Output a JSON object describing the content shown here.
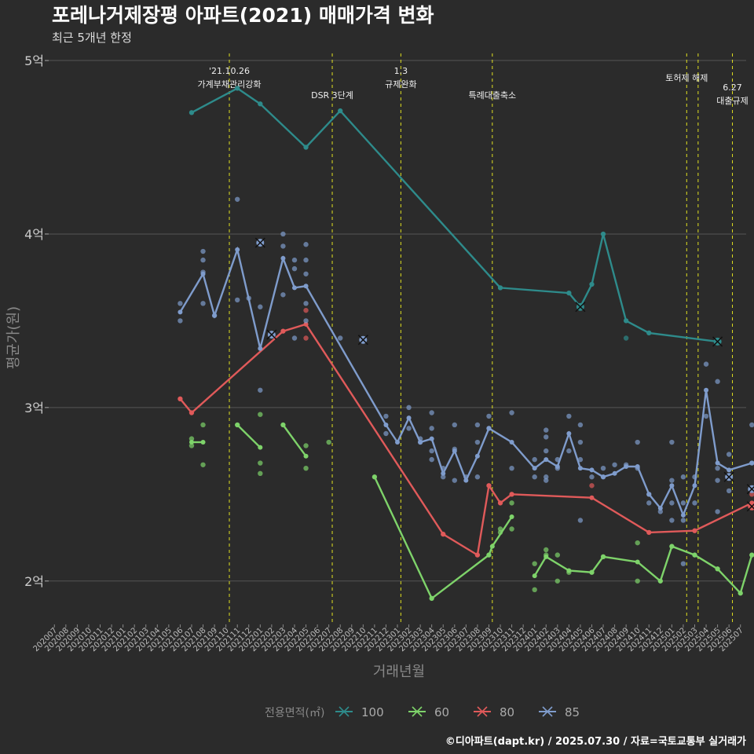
{
  "title": "포레나거제장평 아파트(2021) 매매가격 변화",
  "subtitle": "최근 5개년 한정",
  "footer": "©디아파트(dapt.kr) / 2025.07.30 / 자료=국토교통부 실거래가",
  "colors": {
    "100": "#2e8b8b",
    "60": "#7ed36a",
    "80": "#e05a5a",
    "85": "#7f9ccc",
    "event": "#e0e020",
    "grid": "#555555",
    "bg": "#2b2b2b"
  },
  "chart_data": {
    "type": "line",
    "xlabel": "거래년월",
    "ylabel": "평균가(원)",
    "ylim": [
      1.75,
      5.05
    ],
    "y_ticks": [
      {
        "v": 2,
        "label": "2억"
      },
      {
        "v": 3,
        "label": "3억"
      },
      {
        "v": 4,
        "label": "4억"
      },
      {
        "v": 5,
        "label": "5억"
      }
    ],
    "x_months": [
      "202007",
      "202008",
      "202009",
      "202010",
      "202011",
      "202012",
      "202101",
      "202102",
      "202103",
      "202104",
      "202105",
      "202106",
      "202107",
      "202108",
      "202109",
      "202110",
      "202111",
      "202112",
      "202201",
      "202202",
      "202203",
      "202204",
      "202205",
      "202206",
      "202207",
      "202208",
      "202209",
      "202210",
      "202211",
      "202212",
      "202301",
      "202302",
      "202303",
      "202304",
      "202305",
      "202306",
      "202307",
      "202308",
      "202309",
      "202310",
      "202311",
      "202312",
      "202401",
      "202402",
      "202403",
      "202404",
      "202405",
      "202406",
      "202407",
      "202408",
      "202409",
      "202410",
      "202411",
      "202412",
      "202501",
      "202502",
      "202503",
      "202504",
      "202505",
      "202506",
      "202507"
    ],
    "legend_title": "전용면적(㎡)",
    "events": [
      {
        "x": 15.3,
        "label": "'21.10.26\n가계부채관리강화",
        "pos": "top"
      },
      {
        "x": 24.3,
        "label": "DSR 3단계",
        "pos": "mid"
      },
      {
        "x": 30.3,
        "label": "1.3\n규제완화",
        "pos": "top"
      },
      {
        "x": 38.3,
        "label": "특례대출축소",
        "pos": "mid"
      },
      {
        "x": 55.3,
        "label": "토허제 해제",
        "pos": "top2"
      },
      {
        "x": 56.3,
        "label": "",
        "pos": "none"
      },
      {
        "x": 59.3,
        "label": "6.27\n대출규제",
        "pos": "low"
      }
    ],
    "series": [
      {
        "name": "100",
        "color": "#2e8b8b",
        "line": [
          [
            [
              12,
              4.7
            ],
            [
              16,
              4.84
            ],
            [
              18,
              4.75
            ],
            [
              22,
              4.5
            ],
            [
              25,
              4.71
            ],
            [
              39,
              3.69
            ],
            [
              45,
              3.66
            ],
            [
              46,
              3.58
            ],
            [
              47,
              3.71
            ],
            [
              48,
              4.0
            ],
            [
              50,
              3.5
            ],
            [
              52,
              3.43
            ],
            [
              58,
              3.38
            ]
          ]
        ],
        "points": [
          [
            12,
            4.7
          ],
          [
            16,
            4.84
          ],
          [
            18,
            4.75
          ],
          [
            22,
            4.5
          ],
          [
            25,
            4.71
          ],
          [
            39,
            3.69
          ],
          [
            45,
            3.66
          ],
          [
            47,
            3.71
          ],
          [
            48,
            4.0
          ],
          [
            50,
            3.5
          ],
          [
            50,
            3.4
          ],
          [
            52,
            3.43
          ]
        ],
        "cross": [
          [
            46,
            3.58
          ],
          [
            58,
            3.38
          ]
        ]
      },
      {
        "name": "60",
        "color": "#7ed36a",
        "line": [
          [
            [
              12,
              2.8
            ],
            [
              13,
              2.8
            ]
          ],
          [
            [
              16,
              2.9
            ],
            [
              18,
              2.77
            ]
          ],
          [
            [
              20,
              2.9
            ],
            [
              22,
              2.72
            ]
          ],
          [
            [
              28,
              2.6
            ],
            [
              33,
              1.9
            ],
            [
              38,
              2.15
            ],
            [
              38.3,
              2.2
            ],
            [
              40,
              2.37
            ]
          ],
          [
            [
              42,
              2.03
            ],
            [
              43,
              2.14
            ],
            [
              45,
              2.06
            ],
            [
              47,
              2.05
            ],
            [
              48,
              2.14
            ],
            [
              51,
              2.11
            ],
            [
              53,
              2.0
            ],
            [
              54,
              2.2
            ],
            [
              56,
              2.15
            ],
            [
              58,
              2.07
            ],
            [
              60,
              1.93
            ],
            [
              61,
              2.15
            ]
          ]
        ],
        "points": [
          [
            12,
            2.82
          ],
          [
            12,
            2.78
          ],
          [
            13,
            2.9
          ],
          [
            13,
            2.67
          ],
          [
            16,
            2.9
          ],
          [
            18,
            2.96
          ],
          [
            18,
            2.68
          ],
          [
            18,
            2.62
          ],
          [
            20,
            2.9
          ],
          [
            22,
            2.78
          ],
          [
            22,
            2.65
          ],
          [
            24,
            2.8
          ],
          [
            28,
            2.6
          ],
          [
            33,
            1.9
          ],
          [
            38,
            2.15
          ],
          [
            39,
            2.3
          ],
          [
            39,
            2.28
          ],
          [
            40,
            2.45
          ],
          [
            40,
            2.3
          ],
          [
            42,
            2.1
          ],
          [
            42,
            1.95
          ],
          [
            43,
            2.18
          ],
          [
            43,
            2.15
          ],
          [
            44,
            2.15
          ],
          [
            44,
            2.0
          ],
          [
            45,
            2.05
          ],
          [
            47,
            2.05
          ],
          [
            48,
            2.14
          ],
          [
            51,
            2.22
          ],
          [
            51,
            2.0
          ],
          [
            53,
            2.0
          ],
          [
            54,
            2.2
          ],
          [
            56,
            2.15
          ],
          [
            58,
            2.07
          ],
          [
            60,
            1.93
          ],
          [
            61,
            2.15
          ]
        ],
        "cross": []
      },
      {
        "name": "80",
        "color": "#e05a5a",
        "line": [
          [
            [
              11,
              3.05
            ],
            [
              12,
              2.97
            ],
            [
              20,
              3.44
            ],
            [
              22,
              3.48
            ],
            [
              34,
              2.27
            ],
            [
              37,
              2.15
            ],
            [
              38,
              2.55
            ],
            [
              39,
              2.45
            ],
            [
              40,
              2.5
            ],
            [
              47,
              2.48
            ],
            [
              52,
              2.28
            ],
            [
              56,
              2.29
            ],
            [
              61,
              2.45
            ]
          ]
        ],
        "points": [
          [
            11,
            3.05
          ],
          [
            12,
            2.97
          ],
          [
            20,
            3.44
          ],
          [
            22,
            3.56
          ],
          [
            22,
            3.4
          ],
          [
            34,
            2.27
          ],
          [
            37,
            2.15
          ],
          [
            38,
            2.55
          ],
          [
            39,
            2.45
          ],
          [
            40,
            2.5
          ],
          [
            47,
            2.55
          ],
          [
            52,
            2.28
          ],
          [
            56,
            2.29
          ],
          [
            61,
            2.5
          ]
        ],
        "cross": [
          [
            61,
            2.43
          ]
        ]
      },
      {
        "name": "85",
        "color": "#7f9ccc",
        "line": [
          [
            [
              11,
              3.55
            ],
            [
              13,
              3.77
            ],
            [
              14,
              3.53
            ],
            [
              16,
              3.91
            ],
            [
              18,
              3.34
            ],
            [
              20,
              3.86
            ],
            [
              21,
              3.69
            ],
            [
              22,
              3.7
            ],
            [
              29,
              2.9
            ],
            [
              30,
              2.8
            ],
            [
              31,
              2.94
            ],
            [
              32,
              2.8
            ],
            [
              33,
              2.82
            ],
            [
              34,
              2.62
            ],
            [
              35,
              2.75
            ],
            [
              36,
              2.58
            ],
            [
              37,
              2.72
            ],
            [
              38,
              2.88
            ],
            [
              40,
              2.8
            ],
            [
              42,
              2.65
            ],
            [
              43,
              2.7
            ],
            [
              44,
              2.66
            ],
            [
              45,
              2.85
            ],
            [
              46,
              2.65
            ],
            [
              47,
              2.64
            ],
            [
              48,
              2.6
            ],
            [
              49,
              2.62
            ],
            [
              50,
              2.66
            ],
            [
              51,
              2.66
            ],
            [
              52,
              2.5
            ],
            [
              53,
              2.42
            ],
            [
              54,
              2.55
            ],
            [
              55,
              2.38
            ],
            [
              56,
              2.55
            ],
            [
              57,
              3.1
            ],
            [
              58,
              2.68
            ],
            [
              59,
              2.64
            ],
            [
              61,
              2.68
            ]
          ]
        ],
        "points": [
          [
            11,
            3.6
          ],
          [
            11,
            3.5
          ],
          [
            13,
            3.9
          ],
          [
            13,
            3.85
          ],
          [
            13,
            3.78
          ],
          [
            13,
            3.6
          ],
          [
            14,
            3.53
          ],
          [
            16,
            4.2
          ],
          [
            16,
            3.62
          ],
          [
            17,
            3.63
          ],
          [
            18,
            3.58
          ],
          [
            18,
            3.1
          ],
          [
            20,
            4.0
          ],
          [
            20,
            3.93
          ],
          [
            20,
            3.65
          ],
          [
            21,
            3.85
          ],
          [
            21,
            3.8
          ],
          [
            21,
            3.4
          ],
          [
            22,
            3.94
          ],
          [
            22,
            3.85
          ],
          [
            22,
            3.77
          ],
          [
            22,
            3.6
          ],
          [
            22,
            3.5
          ],
          [
            25,
            3.4
          ],
          [
            29,
            2.95
          ],
          [
            29,
            2.85
          ],
          [
            31,
            3.0
          ],
          [
            31,
            2.88
          ],
          [
            32,
            2.82
          ],
          [
            32,
            2.8
          ],
          [
            33,
            2.97
          ],
          [
            33,
            2.88
          ],
          [
            33,
            2.75
          ],
          [
            33,
            2.7
          ],
          [
            34,
            2.65
          ],
          [
            34,
            2.6
          ],
          [
            35,
            2.9
          ],
          [
            35,
            2.76
          ],
          [
            35,
            2.58
          ],
          [
            36,
            2.6
          ],
          [
            37,
            2.9
          ],
          [
            37,
            2.8
          ],
          [
            37,
            2.6
          ],
          [
            38,
            2.95
          ],
          [
            38,
            2.88
          ],
          [
            40,
            2.97
          ],
          [
            40,
            2.65
          ],
          [
            42,
            2.7
          ],
          [
            42,
            2.6
          ],
          [
            43,
            2.87
          ],
          [
            43,
            2.83
          ],
          [
            43,
            2.75
          ],
          [
            43,
            2.6
          ],
          [
            43,
            2.58
          ],
          [
            44,
            2.7
          ],
          [
            44,
            2.65
          ],
          [
            45,
            2.95
          ],
          [
            45,
            2.75
          ],
          [
            46,
            2.9
          ],
          [
            46,
            2.8
          ],
          [
            46,
            2.7
          ],
          [
            46,
            2.35
          ],
          [
            47,
            2.6
          ],
          [
            48,
            2.65
          ],
          [
            48,
            2.6
          ],
          [
            49,
            2.67
          ],
          [
            50,
            2.67
          ],
          [
            51,
            2.8
          ],
          [
            51,
            2.65
          ],
          [
            52,
            2.5
          ],
          [
            52,
            2.45
          ],
          [
            53,
            2.4
          ],
          [
            54,
            2.8
          ],
          [
            54,
            2.58
          ],
          [
            54,
            2.45
          ],
          [
            54,
            2.35
          ],
          [
            55,
            2.6
          ],
          [
            55,
            2.45
          ],
          [
            55,
            2.35
          ],
          [
            55,
            2.1
          ],
          [
            56,
            2.6
          ],
          [
            56,
            2.45
          ],
          [
            57,
            3.25
          ],
          [
            57,
            2.95
          ],
          [
            58,
            3.15
          ],
          [
            58,
            2.65
          ],
          [
            58,
            2.58
          ],
          [
            58,
            2.4
          ],
          [
            59,
            2.73
          ],
          [
            59,
            2.6
          ],
          [
            59,
            2.52
          ],
          [
            61,
            2.9
          ],
          [
            61,
            2.68
          ]
        ],
        "cross": [
          [
            18,
            3.95
          ],
          [
            19,
            3.42
          ],
          [
            27,
            3.39
          ],
          [
            59,
            2.6
          ],
          [
            61,
            2.53
          ]
        ]
      }
    ]
  }
}
